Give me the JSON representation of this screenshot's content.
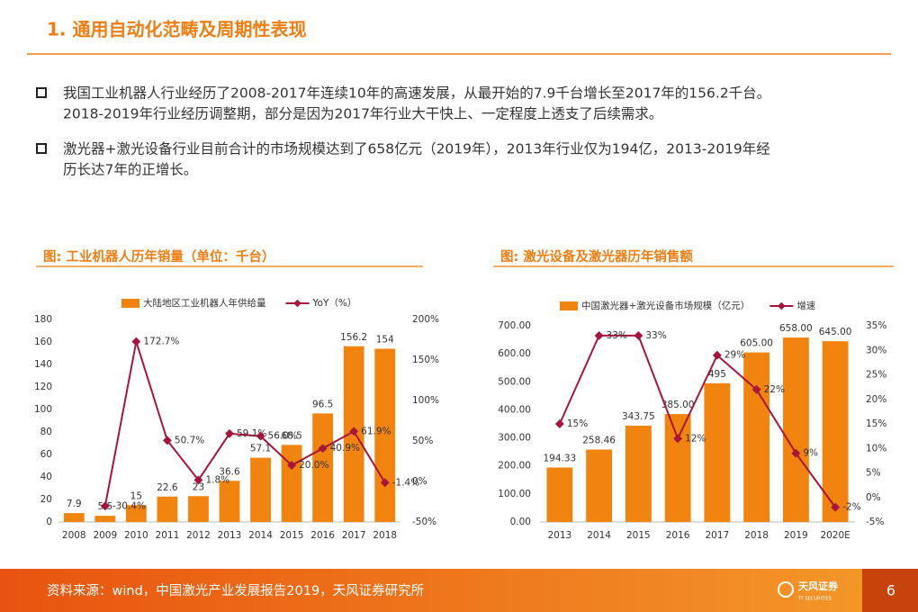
{
  "header": {
    "title": "1. 通用自动化范畴及周期性表现"
  },
  "bullets": [
    {
      "lines": [
        "我国工业机器人行业经历了2008-2017年连续10年的高速发展，从最开始的7.9千台增长至2017年的156.2千台。",
        "2018-2019年行业经历调整期，部分是因为2017年行业大干快上、一定程度上透支了后续需求。"
      ]
    },
    {
      "lines": [
        "激光器+激光设备行业目前合计的市场规模达到了658亿元（2019年），2013年行业仅为194亿，2013-2019年经",
        "历长达7年的正增长。"
      ]
    }
  ],
  "chart_data": [
    {
      "type": "bar_line",
      "title": "图: 工业机器人历年销量（单位：千台）",
      "categories": [
        "2008",
        "2009",
        "2010",
        "2011",
        "2012",
        "2013",
        "2014",
        "2015",
        "2016",
        "2017",
        "2018"
      ],
      "series": [
        {
          "name": "大陆地区工业机器人年供给量",
          "type": "bar",
          "color": "#f0840f",
          "values": [
            7.9,
            5.5,
            15,
            22.6,
            23,
            36.6,
            57.1,
            68.5,
            96.5,
            156.2,
            154
          ]
        },
        {
          "name": "YoY（%）",
          "type": "line",
          "axis": "y2",
          "color": "#a8153c",
          "values": [
            null,
            -30.4,
            172.7,
            50.7,
            1.8,
            59.1,
            56.0,
            20.0,
            40.9,
            61.9,
            -1.4
          ],
          "value_labels": [
            null,
            "-30.4%",
            "172.7%",
            "50.7%",
            "1.8%",
            "59.1%",
            "56.0%",
            "20.0%",
            "40.9%",
            "61.9%",
            "-1.4%"
          ]
        }
      ],
      "ylim": [
        0,
        180
      ],
      "yticks": [
        0,
        20,
        40,
        60,
        80,
        100,
        120,
        140,
        160,
        180
      ],
      "y2lim": [
        -50,
        200
      ],
      "y2ticks": [
        {
          "value": -50,
          "label": "-50%"
        },
        {
          "value": 0,
          "label": "0%"
        },
        {
          "value": 50,
          "label": "50%"
        },
        {
          "value": 100,
          "label": "100%"
        },
        {
          "value": 150,
          "label": "150%"
        },
        {
          "value": 200,
          "label": "200%"
        }
      ]
    },
    {
      "type": "bar_line",
      "title": "图: 激光设备及激光器历年销售额",
      "categories": [
        "2013",
        "2014",
        "2015",
        "2016",
        "2017",
        "2018",
        "2019",
        "2020E"
      ],
      "series": [
        {
          "name": "中国激光器+激光设备市场规模（亿元）",
          "type": "bar",
          "color": "#f0840f",
          "values": [
            194.33,
            258.46,
            343.75,
            385.0,
            495,
            605.0,
            658.0,
            645.0
          ],
          "value_labels": [
            "194.33",
            "258.46",
            "343.75",
            "385.00",
            "495",
            "605.00",
            "658.00",
            "645.00"
          ]
        },
        {
          "name": "增速",
          "type": "line",
          "axis": "y2",
          "color": "#a8153c",
          "values": [
            15,
            33,
            33,
            12,
            29,
            22,
            9,
            -2
          ],
          "value_labels": [
            "15%",
            "33%",
            "33%",
            "12%",
            "29%",
            "22%",
            "9%",
            "-2%"
          ]
        }
      ],
      "ylim": [
        0,
        700
      ],
      "yticks": [
        {
          "value": 0,
          "label": "0.00"
        },
        {
          "value": 100,
          "label": "100.00"
        },
        {
          "value": 200,
          "label": "200.00"
        },
        {
          "value": 300,
          "label": "300.00"
        },
        {
          "value": 400,
          "label": "400.00"
        },
        {
          "value": 500,
          "label": "500.00"
        },
        {
          "value": 600,
          "label": "600.00"
        },
        {
          "value": 700,
          "label": "700.00"
        }
      ],
      "y2lim": [
        -5,
        35
      ],
      "y2ticks": [
        {
          "value": -5,
          "label": "-5%"
        },
        {
          "value": 0,
          "label": "0%"
        },
        {
          "value": 5,
          "label": "5%"
        },
        {
          "value": 10,
          "label": "10%"
        },
        {
          "value": 15,
          "label": "15%"
        },
        {
          "value": 20,
          "label": "20%"
        },
        {
          "value": 25,
          "label": "25%"
        },
        {
          "value": 30,
          "label": "30%"
        },
        {
          "value": 35,
          "label": "35%"
        }
      ]
    }
  ],
  "footer": {
    "source": "资料来源：wind，中国激光产业发展报告2019，天风证券研究所",
    "logo": "天风证券",
    "logo_sub": "TF SECURITIES",
    "page": "6"
  }
}
